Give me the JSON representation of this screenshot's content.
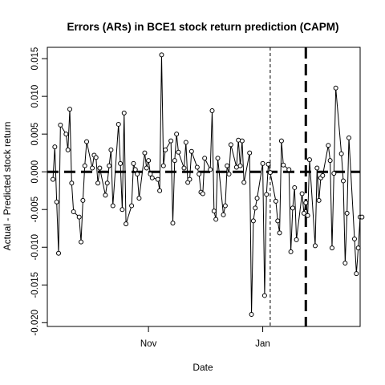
{
  "chart_data": {
    "type": "line",
    "title": "Errors (ARs) in BCE1 stock return prediction (CAPM)",
    "xlabel": "Date",
    "ylabel": "Actual - Predicted stock return",
    "x_start": "2017-09-11",
    "x_end": "2018-02-15",
    "xlim": [
      "2017-09-08",
      "2018-02-22"
    ],
    "ylim": [
      -0.0205,
      0.0165
    ],
    "y_ticks": [
      -0.02,
      -0.015,
      -0.01,
      -0.005,
      0.0,
      0.005,
      0.01,
      0.015
    ],
    "y_tick_labels": [
      "-0.020",
      "-0.015",
      "-0.010",
      "-0.005",
      "0.000",
      "0.005",
      "0.010",
      "0.015"
    ],
    "x_ticks": [
      {
        "date": "2017-11-01",
        "label": "Nov"
      },
      {
        "date": "2018-01-01",
        "label": "Jan"
      }
    ],
    "hline": {
      "y": 0.0,
      "style": "dashed",
      "weight": "heavy"
    },
    "vlines": [
      {
        "date": "2018-01-05",
        "style": "dashed",
        "weight": "thin"
      },
      {
        "date": "2018-01-24",
        "style": "dashed",
        "weight": "heavy"
      }
    ],
    "grid": false,
    "legend": "none",
    "series": [
      {
        "values": [
          -0.001,
          0.0033,
          -0.004,
          -0.0108,
          0.0062,
          0.005,
          0.0029,
          0.0083,
          -0.0015,
          -0.0053,
          -0.006,
          -0.0093,
          -0.0038,
          0.0008,
          0.004,
          0.0005,
          0.0022,
          0.0019,
          -0.0015,
          0.0005,
          -0.0031,
          -0.0015,
          0.0008,
          0.0029,
          -0.0045,
          0.0063,
          0.0011,
          -0.005,
          0.0078,
          -0.0069,
          -0.0045,
          0.0011,
          0.0003,
          -0.0003,
          -0.0035,
          0.0025,
          0.0005,
          0.0015,
          -0.0003,
          -0.0008,
          -0.001,
          -0.0025,
          0.0155,
          0.0008,
          0.0029,
          0.0041,
          -0.0068,
          0.0015,
          0.005,
          0.0026,
          0.0005,
          0.0039,
          -0.0014,
          -0.001,
          0.0027,
          0.0006,
          -0.0003,
          -0.0027,
          -0.0029,
          0.0018,
          0.0003,
          0.0081,
          -0.0052,
          -0.0063,
          0.0018,
          -0.0057,
          -0.0045,
          0.0008,
          -0.0003,
          0.0036,
          0.0006,
          0.0042,
          0.0008,
          0.0041,
          -0.0014,
          0.0025,
          -0.0189,
          -0.0065,
          -0.0048,
          -0.0035,
          0.0011,
          -0.0164,
          -0.003,
          0.001,
          -0.0001,
          -0.0039,
          -0.0065,
          -0.0081,
          0.0041,
          0.0009,
          0.0003,
          -0.0106,
          -0.0048,
          -0.0021,
          -0.009,
          -0.0029,
          -0.0055,
          -0.0041,
          -0.0058,
          0.0016,
          -0.0098,
          0.0005,
          -0.0038,
          -0.0008,
          -0.0005,
          0.0035,
          0.0015,
          -0.0101,
          -0.0002,
          0.0111,
          0.0024,
          -0.0012,
          -0.0121,
          -0.0055,
          0.0045,
          -0.0089,
          -0.0135,
          -0.0101,
          -0.006,
          -0.006
        ]
      }
    ]
  }
}
